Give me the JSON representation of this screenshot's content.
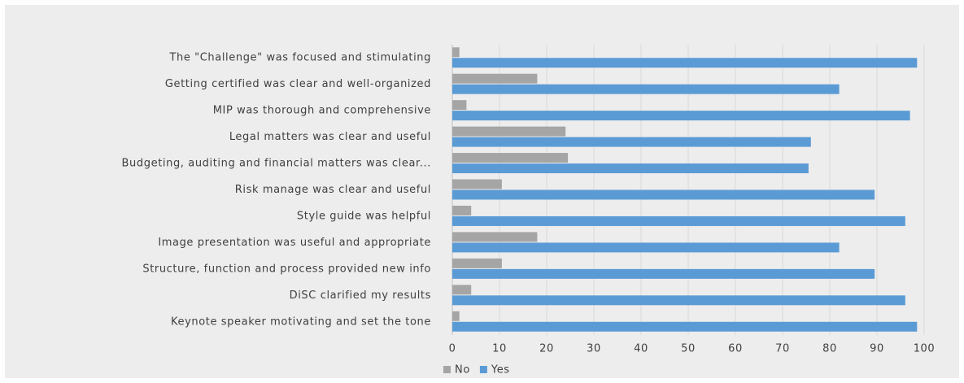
{
  "chart_data": {
    "type": "hbar",
    "categories": [
      "The \"Challenge\" was focused and stimulating",
      "Getting certified was clear and well-organized",
      "MIP was thorough and comprehensive",
      "Legal matters was clear and useful",
      "Budgeting, auditing and financial matters was clear...",
      "Risk manage was clear and useful",
      "Style guide was helpful",
      "Image presentation was useful and appropriate",
      "Structure, function and process provided new info",
      "DiSC clarified my results",
      "Keynote speaker motivating and set the tone"
    ],
    "series": [
      {
        "name": "No",
        "color": "#a5a5a5",
        "values": [
          1.5,
          18,
          3,
          24,
          24.5,
          10.5,
          4,
          18,
          10.5,
          4,
          1.5
        ]
      },
      {
        "name": "Yes",
        "color": "#5b9bd5",
        "values": [
          98.5,
          82,
          97,
          76,
          75.5,
          89.5,
          96,
          82,
          89.5,
          96,
          98.5
        ]
      }
    ],
    "xlim": [
      0,
      100
    ],
    "xticks": [
      0,
      10,
      20,
      30,
      40,
      50,
      60,
      70,
      80,
      90,
      100
    ],
    "grid": true,
    "legend": "bottom"
  }
}
